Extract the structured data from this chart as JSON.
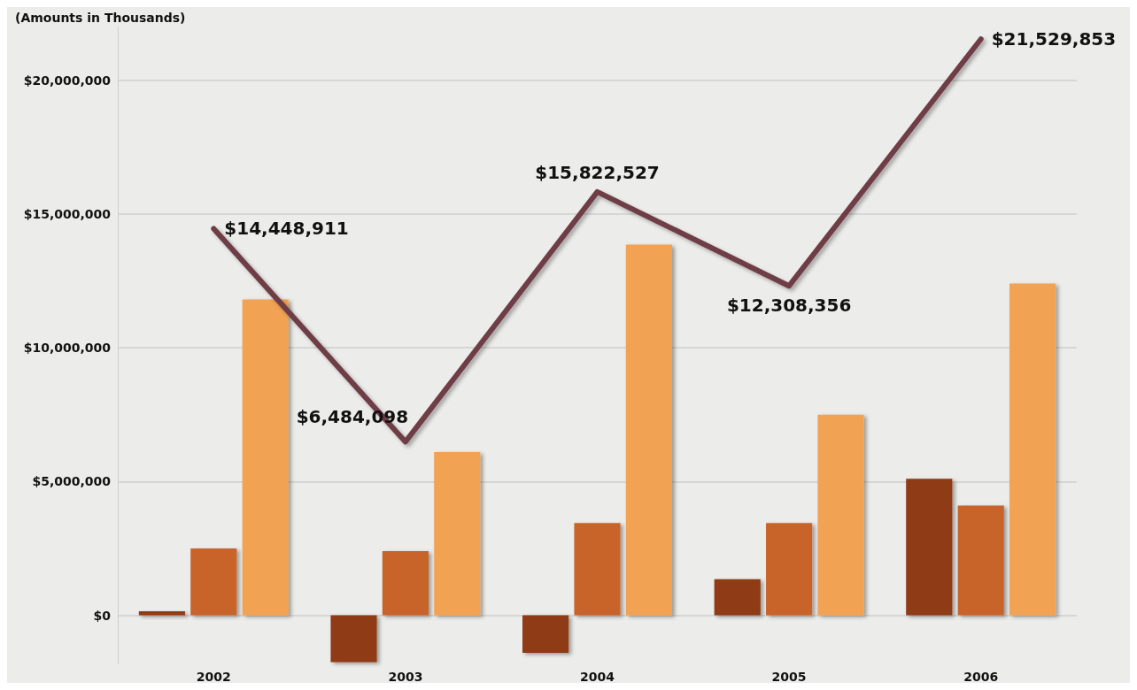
{
  "chart_data": {
    "type": "bar",
    "subtitle": "(Amounts in Thousands)",
    "categories": [
      "2002",
      "2003",
      "2004",
      "2005",
      "2006"
    ],
    "series": [
      {
        "color": "#8e3a16",
        "values": [
          150000,
          -1750000,
          -1400000,
          1350000,
          5100000
        ]
      },
      {
        "color": "#c8642a",
        "values": [
          2500000,
          2400000,
          3450000,
          3450000,
          4100000
        ]
      },
      {
        "color": "#f2a252",
        "values": [
          11800000,
          6100000,
          13850000,
          7500000,
          12400000
        ]
      },
      {
        "type": "line",
        "color": "#6e3c44",
        "values": [
          14448911,
          6484098,
          15822527,
          12308356,
          21529853
        ],
        "value_labels": [
          "$14,448,911",
          "$6,484,098",
          "$15,822,527",
          "$12,308,356",
          "$21,529,853"
        ]
      }
    ],
    "ylim": [
      -1800000,
      22000000
    ],
    "yticks": [
      {
        "value": 0,
        "label": "$0"
      },
      {
        "value": 5000000,
        "label": "$5,000,000"
      },
      {
        "value": 10000000,
        "label": "$10,000,000"
      },
      {
        "value": 15000000,
        "label": "$15,000,000"
      },
      {
        "value": 20000000,
        "label": "$20,000,000"
      }
    ],
    "grid": "y",
    "marker": "none"
  }
}
